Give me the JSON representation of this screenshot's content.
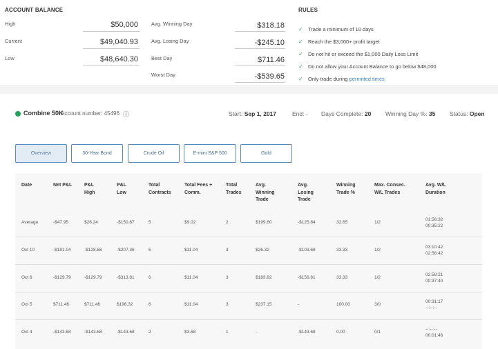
{
  "balance": {
    "title": "ACCOUNT BALANCE",
    "high_label": "High",
    "high_value": "$50,000",
    "current_label": "Current",
    "current_value": "$49,040.93",
    "low_label": "Low",
    "low_value": "$48,640.30",
    "avg_win_label": "Avg. Winning Day",
    "avg_win_value": "$318.18",
    "avg_loss_label": "Avg. Losing Day",
    "avg_loss_value": "-$245.10",
    "best_label": "Best Day",
    "best_value": "$711.46",
    "worst_label": "Worst Day",
    "worst_value": "-$539.65"
  },
  "rules": {
    "title": "RULES",
    "check_glyph": "✓",
    "items": [
      "Trade a minimum of 10 days",
      "Reach the $3,000+ profit target",
      "Do not hit or exceed the $1,000 Daily Loss Limit",
      "Do not allow your Account Balance to go below $48,000",
      "Only trade during"
    ],
    "link_text": "permitted times"
  },
  "account": {
    "name": "Combine 50K",
    "number_label": "Account number: 45496",
    "info_icon": "ⓘ",
    "start_label": "Start:",
    "start_value": "Sep 1, 2017",
    "end_label": "End: -",
    "days_label": "Days Complete:",
    "days_value": "20",
    "winning_label": "Winning Day %:",
    "winning_value": "35",
    "status_label": "Status:",
    "status_value": "Open",
    "status_color": "#27a05a"
  },
  "tabs": [
    "Overview",
    "30-Year Bond",
    "Crude Oil",
    "E-mini S&P 500",
    "Gold"
  ],
  "table": {
    "headers": [
      "Date",
      "Net P&L",
      "P&L\nHigh",
      "P&L\nLow",
      "Total\nContracts",
      "Total Fees +\nComm.",
      "Total\nTrades",
      "Avg.\nWinning\nTrade",
      "Avg.\nLosing\nTrade",
      "Winning\nTrade %",
      "Max. Consec.\nW/L Trades",
      "Avg. W/L\nDuration"
    ],
    "rows": [
      [
        "Average",
        "-$47.95",
        "$26.24",
        "-$150.87",
        "5",
        "$9.02",
        "2",
        "$199.60",
        "-$125.84",
        "32.65",
        "1/2",
        "01:56:32\n00:35:22"
      ],
      [
        "Oct 10",
        "-$181.04",
        "-$128.68",
        "-$207.36",
        "6",
        "$11.04",
        "3",
        "$26.32",
        "-$103.68",
        "33.33",
        "1/2",
        "03:10:42\n02:56:42"
      ],
      [
        "Oct 6",
        "-$129.79",
        "-$129.79",
        "-$313.81",
        "6",
        "$11.04",
        "3",
        "$183.82",
        "-$156.81",
        "33.33",
        "1/2",
        "02:58:21\n00:37:40"
      ],
      [
        "Oct 5",
        "$711.46",
        "$711.46",
        "$196.32",
        "6",
        "$11.04",
        "3",
        "$237.15",
        "-",
        "100.00",
        "3/0",
        "00:31:17\n--:--:--"
      ],
      [
        "Oct 4",
        "-$143.68",
        "-$143.68",
        "-$143.68",
        "2",
        "$3.68",
        "1",
        "-",
        "-$143.68",
        "0.00",
        "0/1",
        "--:--:--\n00:01:46"
      ]
    ]
  }
}
